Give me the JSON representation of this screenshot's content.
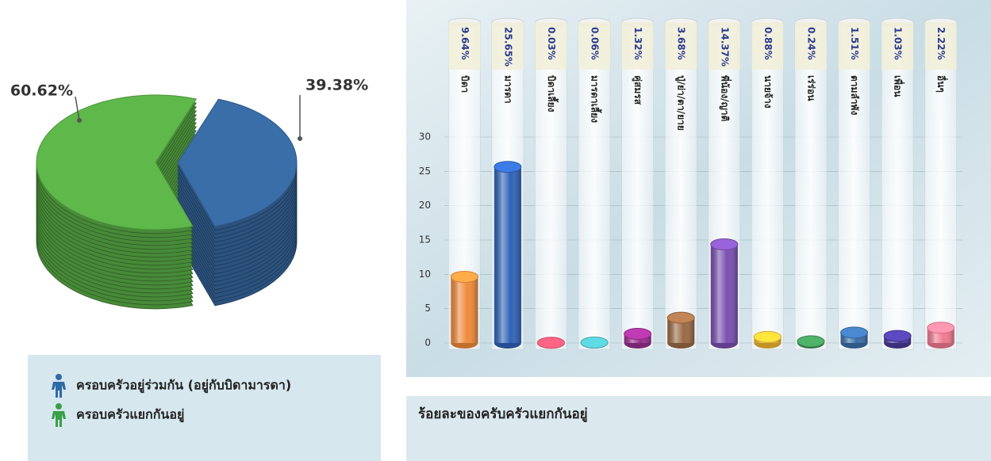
{
  "chart_data": [
    {
      "type": "pie",
      "categories": [
        "ครอบครัวอยู่ร่วมกัน (อยู่กับบิดามารดา)",
        "ครอบครัวแยกกันอยู่"
      ],
      "values": [
        39.38,
        60.62
      ],
      "value_labels": [
        "39.38%",
        "60.62%"
      ],
      "colors": [
        "#3a6ea8",
        "#5fb84a"
      ]
    },
    {
      "type": "bar",
      "title": "ร้อยละของครับครัวแยกกันอยู่",
      "categories": [
        "บิดา",
        "มารดา",
        "บิดาเลี้ยง",
        "มารดาเลี้ยง",
        "คู่สมรส",
        "ปู่/ย่า/ตา/ยาย",
        "พี่น้อง/ญาติ",
        "นายจ้าง",
        "เร่ร่อน",
        "ตามลำพัง",
        "เพื่อน",
        "อื่นๆ"
      ],
      "values": [
        9.64,
        25.65,
        0.03,
        0.06,
        1.32,
        3.68,
        14.37,
        0.88,
        0.24,
        1.51,
        1.03,
        2.22
      ],
      "value_labels": [
        "9.64%",
        "25.65%",
        "0.03%",
        "0.06%",
        "1.32%",
        "3.68%",
        "14.37%",
        "0.88%",
        "0.24%",
        "1.51%",
        "1.03%",
        "2.22%"
      ],
      "colors": [
        "#f08a3a",
        "#2f63b8",
        "#e0506a",
        "#4bb0b8",
        "#9a2f90",
        "#9a6a45",
        "#7a4fb0",
        "#f0b830",
        "#3f8f55",
        "#3a6ea8",
        "#4a3a9a",
        "#f07a90"
      ],
      "ylim": [
        0,
        30
      ],
      "yticks": [
        0,
        5,
        10,
        15,
        20,
        25,
        30
      ]
    }
  ]
}
